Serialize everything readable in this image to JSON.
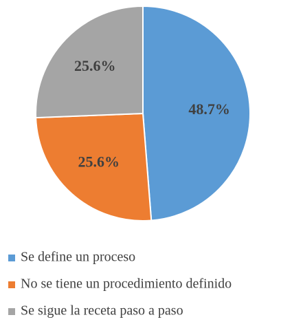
{
  "chart_data": {
    "type": "pie",
    "categories": [
      "Se define un proceso",
      "No se tiene un procedimiento definido",
      "Se sigue la receta paso a paso"
    ],
    "values": [
      48.7,
      25.6,
      25.6
    ],
    "value_labels": [
      "48.7%",
      "25.6%",
      "25.6%"
    ],
    "colors": [
      "#5b9bd5",
      "#ed7d31",
      "#a5a5a5"
    ],
    "legend": "bottom"
  }
}
